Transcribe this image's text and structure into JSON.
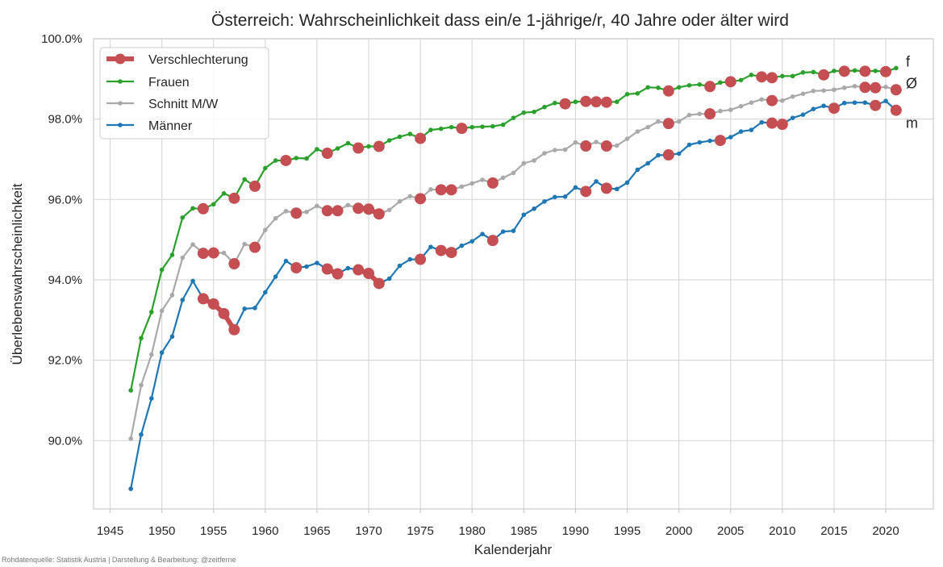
{
  "chart_data": {
    "type": "line",
    "title": "Österreich: Wahrscheinlichkeit dass ein/e 1-jährige/r, 40 Jahre oder älter wird",
    "xlabel": "Kalenderjahr",
    "ylabel": "Überlebenswahrscheinlichkeit",
    "xlim": [
      1943.4,
      2024.6
    ],
    "ylim": [
      88.3,
      100.0
    ],
    "xticks": [
      1945,
      1950,
      1955,
      1960,
      1965,
      1970,
      1975,
      1980,
      1985,
      1990,
      1995,
      2000,
      2005,
      2010,
      2015,
      2020
    ],
    "yticks": [
      90,
      92,
      94,
      96,
      98,
      100
    ],
    "ytick_labels": [
      "90.0%",
      "92.0%",
      "94.0%",
      "96.0%",
      "98.0%",
      "100.0%"
    ],
    "grid": true,
    "legend_position": "top-left",
    "legend": [
      "Verschlechterung",
      "Frauen",
      "Schnitt M/W",
      "Männer"
    ],
    "x": [
      1947,
      1948,
      1949,
      1950,
      1951,
      1952,
      1953,
      1954,
      1955,
      1956,
      1957,
      1958,
      1959,
      1960,
      1961,
      1962,
      1963,
      1964,
      1965,
      1966,
      1967,
      1968,
      1969,
      1970,
      1971,
      1972,
      1973,
      1974,
      1975,
      1976,
      1977,
      1978,
      1979,
      1980,
      1981,
      1982,
      1983,
      1984,
      1985,
      1986,
      1987,
      1988,
      1989,
      1990,
      1991,
      1992,
      1993,
      1994,
      1995,
      1996,
      1997,
      1998,
      1999,
      2000,
      2001,
      2002,
      2003,
      2004,
      2005,
      2006,
      2007,
      2008,
      2009,
      2010,
      2011,
      2012,
      2013,
      2014,
      2015,
      2016,
      2017,
      2018,
      2019,
      2020,
      2021
    ],
    "series": [
      {
        "name": "Frauen",
        "color": "#2ca02c",
        "end_label": "f",
        "values": [
          91.25,
          92.55,
          93.2,
          94.25,
          94.62,
          95.55,
          95.78,
          95.77,
          95.88,
          96.15,
          96.03,
          96.5,
          96.33,
          96.78,
          96.97,
          96.97,
          97.03,
          97.02,
          97.25,
          97.15,
          97.27,
          97.4,
          97.28,
          97.32,
          97.32,
          97.47,
          97.56,
          97.63,
          97.52,
          97.73,
          97.76,
          97.8,
          97.77,
          97.8,
          97.81,
          97.82,
          97.86,
          98.03,
          98.16,
          98.18,
          98.3,
          98.4,
          98.38,
          98.43,
          98.44,
          98.43,
          98.42,
          98.43,
          98.62,
          98.64,
          98.79,
          98.78,
          98.7,
          98.79,
          98.84,
          98.86,
          98.81,
          98.91,
          98.93,
          98.97,
          99.1,
          99.05,
          99.03,
          99.07,
          99.07,
          99.16,
          99.17,
          99.1,
          99.2,
          99.19,
          99.21,
          99.19,
          99.2,
          99.18,
          99.27
        ]
      },
      {
        "name": "Schnitt M/W",
        "color": "#a9a9a9",
        "end_label": "Ø",
        "values": [
          90.05,
          91.38,
          92.14,
          93.23,
          93.62,
          94.55,
          94.88,
          94.66,
          94.67,
          94.67,
          94.4,
          94.89,
          94.81,
          95.24,
          95.53,
          95.71,
          95.66,
          95.69,
          95.84,
          95.72,
          95.72,
          95.86,
          95.78,
          95.76,
          95.64,
          95.74,
          95.95,
          96.08,
          96.02,
          96.25,
          96.24,
          96.24,
          96.32,
          96.4,
          96.49,
          96.41,
          96.54,
          96.66,
          96.9,
          96.97,
          97.15,
          97.23,
          97.24,
          97.42,
          97.33,
          97.43,
          97.33,
          97.34,
          97.51,
          97.69,
          97.8,
          97.94,
          97.89,
          97.94,
          98.1,
          98.13,
          98.13,
          98.2,
          98.23,
          98.32,
          98.41,
          98.49,
          98.46,
          98.46,
          98.56,
          98.63,
          98.7,
          98.71,
          98.73,
          98.78,
          98.82,
          98.79,
          98.78,
          98.8,
          98.73
        ]
      },
      {
        "name": "Männer",
        "color": "#1f77b4",
        "end_label": "m",
        "values": [
          88.8,
          90.15,
          91.05,
          92.19,
          92.59,
          93.5,
          93.97,
          93.53,
          93.4,
          93.16,
          92.76,
          93.28,
          93.3,
          93.69,
          94.08,
          94.47,
          94.3,
          94.33,
          94.42,
          94.27,
          94.15,
          94.29,
          94.25,
          94.16,
          93.91,
          94.03,
          94.35,
          94.51,
          94.51,
          94.82,
          94.73,
          94.68,
          94.85,
          94.96,
          95.14,
          94.98,
          95.2,
          95.22,
          95.62,
          95.77,
          95.95,
          96.06,
          96.07,
          96.3,
          96.2,
          96.45,
          96.28,
          96.26,
          96.42,
          96.74,
          96.9,
          97.1,
          97.11,
          97.14,
          97.36,
          97.42,
          97.46,
          97.47,
          97.55,
          97.69,
          97.73,
          97.92,
          97.9,
          97.87,
          98.03,
          98.11,
          98.25,
          98.33,
          98.27,
          98.4,
          98.41,
          98.41,
          98.34,
          98.45,
          98.22
        ]
      }
    ],
    "verschlechterung_color": "#c44e52",
    "verschlechterung_years": {
      "Frauen": [
        1954,
        1957,
        1959,
        1962,
        1966,
        1969,
        1971,
        1975,
        1979,
        1989,
        1991,
        1992,
        1993,
        1999,
        2003,
        2005,
        2008,
        2009,
        2014,
        2016,
        2018,
        2020
      ],
      "Schnitt M/W": [
        1954,
        1955,
        1957,
        1959,
        1963,
        1966,
        1967,
        1969,
        1970,
        1971,
        1975,
        1977,
        1978,
        1982,
        1991,
        1993,
        1999,
        2003,
        2009,
        2018,
        2019,
        2021
      ],
      "Männer": [
        1954,
        1955,
        1956,
        1957,
        1963,
        1966,
        1967,
        1969,
        1970,
        1971,
        1975,
        1977,
        1978,
        1982,
        1991,
        1993,
        1999,
        2004,
        2009,
        2010,
        2015,
        2019,
        2021
      ]
    }
  },
  "source_note": "Rohdatenquelle: Statistik Austria | Darstellung & Bearbeitung: @zeitferne"
}
